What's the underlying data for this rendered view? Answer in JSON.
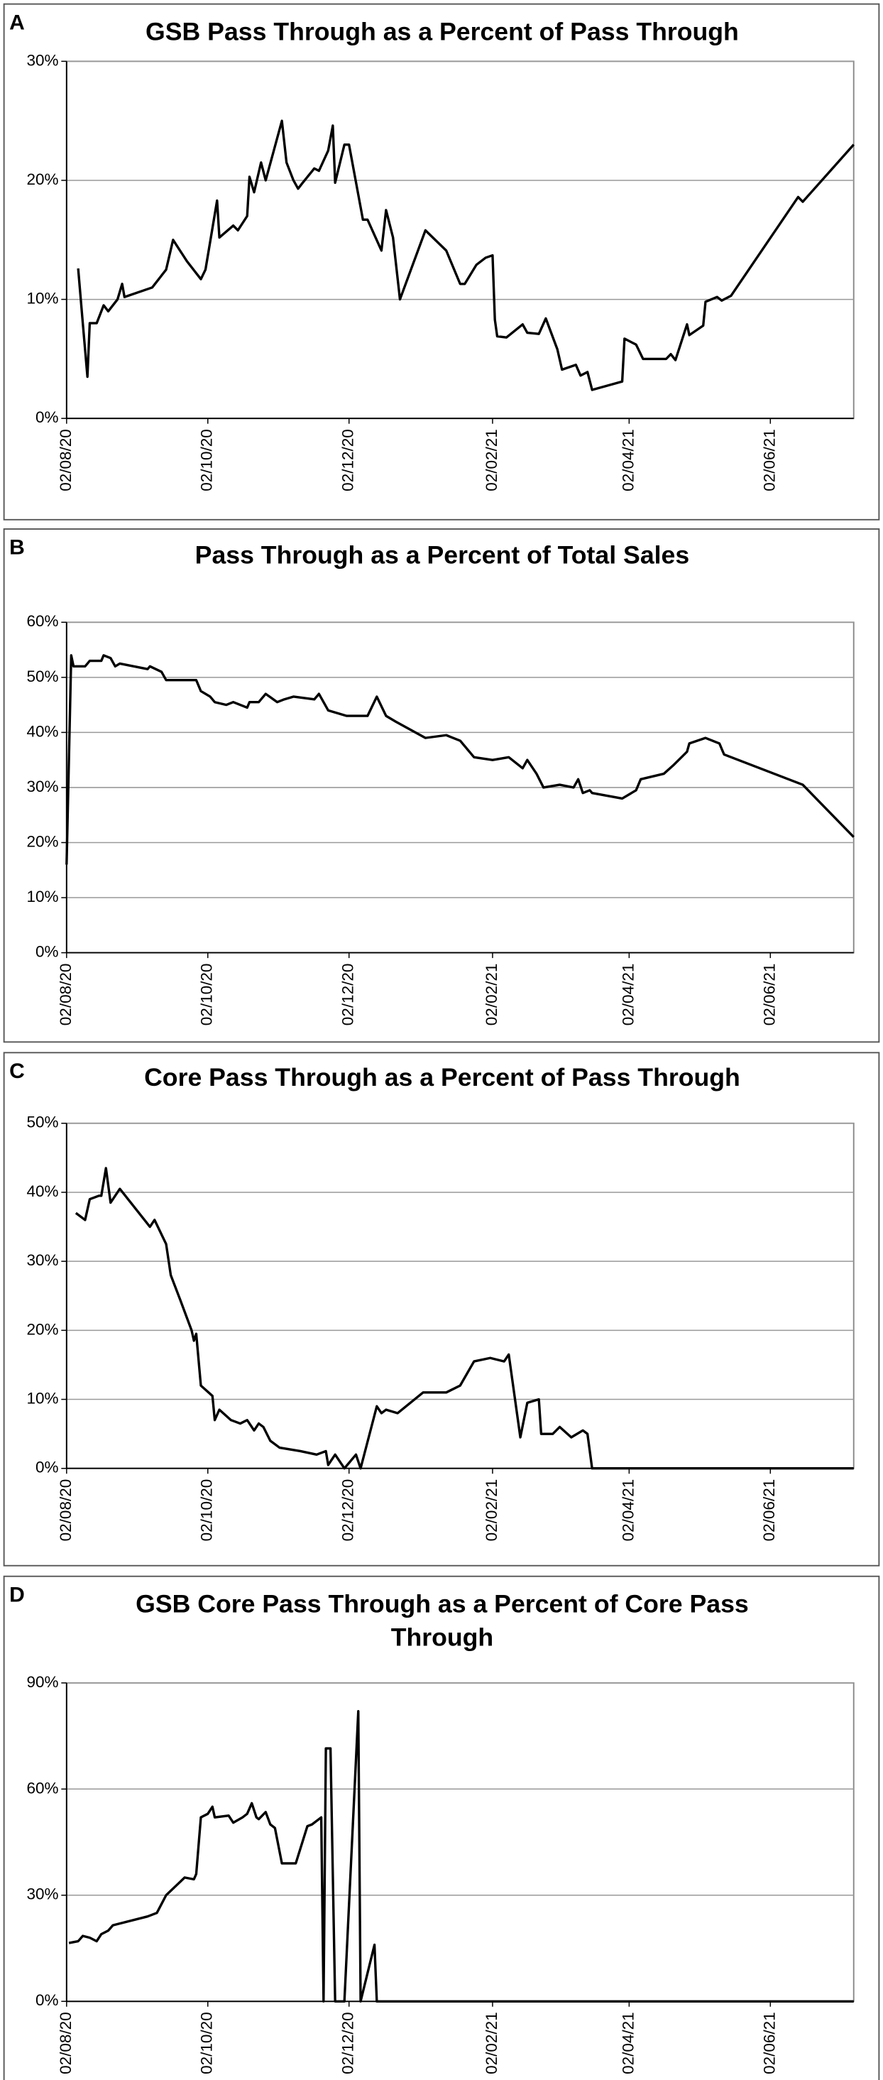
{
  "chart_data": [
    {
      "type": "line",
      "panel": "A",
      "title": "GSB Pass Through as a Percent of Pass Through",
      "xlim": [
        "2020-08-02",
        "2021-07-08"
      ],
      "xticks": [
        {
          "value": "2020-08-02",
          "label": "02/08/20"
        },
        {
          "value": "2020-10-02",
          "label": "02/10/20"
        },
        {
          "value": "2020-12-02",
          "label": "02/12/20"
        },
        {
          "value": "2021-02-02",
          "label": "02/02/21"
        },
        {
          "value": "2021-04-02",
          "label": "02/04/21"
        },
        {
          "value": "2021-06-02",
          "label": "02/06/21"
        }
      ],
      "ylim": [
        0,
        30
      ],
      "yticks": [
        {
          "value": 0,
          "label": "0%"
        },
        {
          "value": 10,
          "label": "10%"
        },
        {
          "value": 20,
          "label": "20%"
        },
        {
          "value": 30,
          "label": "30%"
        }
      ],
      "grid": true,
      "series": [
        {
          "color": "#000000",
          "x": [
            "2020-08-07",
            "2020-08-09",
            "2020-08-11",
            "2020-08-12",
            "2020-08-15",
            "2020-08-18",
            "2020-08-20",
            "2020-08-24",
            "2020-08-26",
            "2020-08-27",
            "2020-09-08",
            "2020-09-14",
            "2020-09-17",
            "2020-09-23",
            "2020-09-29",
            "2020-10-01",
            "2020-10-06",
            "2020-10-07",
            "2020-10-13",
            "2020-10-15",
            "2020-10-19",
            "2020-10-20",
            "2020-10-22",
            "2020-10-25",
            "2020-10-27",
            "2020-11-03",
            "2020-11-05",
            "2020-11-08",
            "2020-11-10",
            "2020-11-12",
            "2020-11-17",
            "2020-11-19",
            "2020-11-23",
            "2020-11-25",
            "2020-11-26",
            "2020-11-30",
            "2020-12-02",
            "2020-12-08",
            "2020-12-10",
            "2020-12-16",
            "2020-12-18",
            "2020-12-21",
            "2020-12-24",
            "2021-01-04",
            "2021-01-13",
            "2021-01-19",
            "2021-01-21",
            "2021-01-26",
            "2021-01-30",
            "2021-02-02",
            "2021-02-03",
            "2021-02-04",
            "2021-02-08",
            "2021-02-15",
            "2021-02-17",
            "2021-02-22",
            "2021-02-25",
            "2021-03-02",
            "2021-03-04",
            "2021-03-10",
            "2021-03-12",
            "2021-03-15",
            "2021-03-17",
            "2021-03-30",
            "2021-03-31",
            "2021-04-05",
            "2021-04-08",
            "2021-04-18",
            "2021-04-20",
            "2021-04-22",
            "2021-04-27",
            "2021-04-28",
            "2021-05-04",
            "2021-05-05",
            "2021-05-10",
            "2021-05-12",
            "2021-05-16",
            "2021-06-14",
            "2021-06-16",
            "2021-07-08"
          ],
          "values": [
            12.6,
            8,
            3.5,
            8,
            8,
            9.5,
            9,
            10,
            11.3,
            10.2,
            11,
            12.5,
            15,
            13.2,
            11.7,
            12.5,
            18.3,
            15.2,
            16.2,
            15.8,
            17,
            20.3,
            19,
            21.5,
            20,
            25,
            21.5,
            20,
            19.3,
            19.8,
            21,
            20.8,
            22.5,
            24.6,
            19.8,
            23,
            23,
            16.7,
            16.7,
            14.1,
            17.5,
            15.2,
            10,
            15.8,
            14.1,
            11.3,
            11.3,
            12.9,
            13.5,
            13.7,
            8.3,
            6.9,
            6.8,
            7.9,
            7.2,
            7.1,
            8.4,
            5.8,
            4.1,
            4.5,
            3.6,
            3.9,
            2.4,
            3.1,
            6.7,
            6.2,
            5,
            5,
            5.4,
            4.9,
            7.9,
            7,
            7.8,
            9.8,
            10.2,
            9.9,
            10.3,
            18.6,
            18.2,
            23
          ]
        }
      ]
    },
    {
      "type": "line",
      "panel": "B",
      "title": "Pass Through as a Percent of Total Sales",
      "xlim": [
        "2020-08-02",
        "2021-07-08"
      ],
      "xticks": [
        {
          "value": "2020-08-02",
          "label": "02/08/20"
        },
        {
          "value": "2020-10-02",
          "label": "02/10/20"
        },
        {
          "value": "2020-12-02",
          "label": "02/12/20"
        },
        {
          "value": "2021-02-02",
          "label": "02/02/21"
        },
        {
          "value": "2021-04-02",
          "label": "02/04/21"
        },
        {
          "value": "2021-06-02",
          "label": "02/06/21"
        }
      ],
      "ylim": [
        0,
        60
      ],
      "yticks": [
        {
          "value": 0,
          "label": "0%"
        },
        {
          "value": 10,
          "label": "10%"
        },
        {
          "value": 20,
          "label": "20%"
        },
        {
          "value": 30,
          "label": "30%"
        },
        {
          "value": 40,
          "label": "40%"
        },
        {
          "value": 50,
          "label": "50%"
        },
        {
          "value": 60,
          "label": "60%"
        }
      ],
      "grid": true,
      "series": [
        {
          "color": "#000000",
          "x": [
            "2020-08-02",
            "2020-08-04",
            "2020-08-05",
            "2020-08-10",
            "2020-08-12",
            "2020-08-17",
            "2020-08-18",
            "2020-08-21",
            "2020-08-23",
            "2020-08-25",
            "2020-09-06",
            "2020-09-07",
            "2020-09-12",
            "2020-09-14",
            "2020-09-27",
            "2020-09-29",
            "2020-10-03",
            "2020-10-05",
            "2020-10-10",
            "2020-10-13",
            "2020-10-19",
            "2020-10-20",
            "2020-10-24",
            "2020-10-27",
            "2020-11-01",
            "2020-11-04",
            "2020-11-08",
            "2020-11-17",
            "2020-11-19",
            "2020-11-23",
            "2020-12-01",
            "2020-12-10",
            "2020-12-14",
            "2020-12-18",
            "2020-12-22",
            "2021-01-04",
            "2021-01-13",
            "2021-01-19",
            "2021-01-25",
            "2021-02-02",
            "2021-02-09",
            "2021-02-15",
            "2021-02-17",
            "2021-02-21",
            "2021-02-24",
            "2021-03-03",
            "2021-03-09",
            "2021-03-11",
            "2021-03-13",
            "2021-03-16",
            "2021-03-17",
            "2021-03-30",
            "2021-04-05",
            "2021-04-07",
            "2021-04-17",
            "2021-04-21",
            "2021-04-27",
            "2021-04-28",
            "2021-05-05",
            "2021-05-11",
            "2021-05-13",
            "2021-06-16",
            "2021-07-08"
          ],
          "values": [
            16,
            54,
            52,
            52,
            53,
            53,
            54,
            53.5,
            52,
            52.5,
            51.5,
            52,
            51,
            49.5,
            49.5,
            47.5,
            46.5,
            45.5,
            45,
            45.5,
            44.5,
            45.5,
            45.5,
            47,
            45.5,
            46,
            46.5,
            46,
            47,
            44,
            43,
            43,
            46.5,
            43,
            42,
            39,
            39.5,
            38.5,
            35.5,
            35,
            35.5,
            33.5,
            35,
            32.5,
            30,
            30.5,
            30,
            31.5,
            29,
            29.5,
            29,
            28,
            29.5,
            31.5,
            32.5,
            34,
            36.5,
            38,
            39,
            38,
            36,
            30.5,
            21
          ]
        }
      ]
    },
    {
      "type": "line",
      "panel": "C",
      "title": "Core Pass Through as a Percent of Pass Through",
      "xlim": [
        "2020-08-02",
        "2021-07-08"
      ],
      "xticks": [
        {
          "value": "2020-08-02",
          "label": "02/08/20"
        },
        {
          "value": "2020-10-02",
          "label": "02/10/20"
        },
        {
          "value": "2020-12-02",
          "label": "02/12/20"
        },
        {
          "value": "2021-02-02",
          "label": "02/02/21"
        },
        {
          "value": "2021-04-02",
          "label": "02/04/21"
        },
        {
          "value": "2021-06-02",
          "label": "02/06/21"
        }
      ],
      "ylim": [
        0,
        50
      ],
      "yticks": [
        {
          "value": 0,
          "label": "0%"
        },
        {
          "value": 10,
          "label": "10%"
        },
        {
          "value": 20,
          "label": "20%"
        },
        {
          "value": 30,
          "label": "30%"
        },
        {
          "value": 40,
          "label": "40%"
        },
        {
          "value": 50,
          "label": "50%"
        }
      ],
      "grid": true,
      "series": [
        {
          "color": "#000000",
          "x": [
            "2020-08-06",
            "2020-08-10",
            "2020-08-12",
            "2020-08-16",
            "2020-08-17",
            "2020-08-19",
            "2020-08-21",
            "2020-08-23",
            "2020-08-25",
            "2020-09-07",
            "2020-09-09",
            "2020-09-14",
            "2020-09-16",
            "2020-09-20",
            "2020-09-25",
            "2020-09-26",
            "2020-09-27",
            "2020-09-29",
            "2020-10-04",
            "2020-10-05",
            "2020-10-07",
            "2020-10-12",
            "2020-10-16",
            "2020-10-19",
            "2020-10-22",
            "2020-10-24",
            "2020-10-26",
            "2020-10-29",
            "2020-11-02",
            "2020-11-11",
            "2020-11-18",
            "2020-11-22",
            "2020-11-23",
            "2020-11-26",
            "2020-11-30",
            "2020-12-05",
            "2020-12-07",
            "2020-12-14",
            "2020-12-16",
            "2020-12-18",
            "2020-12-23",
            "2021-01-03",
            "2021-01-13",
            "2021-01-19",
            "2021-01-25",
            "2021-02-01",
            "2021-02-07",
            "2021-02-09",
            "2021-02-14",
            "2021-02-17",
            "2021-02-22",
            "2021-02-23",
            "2021-02-28",
            "2021-03-03",
            "2021-03-08",
            "2021-03-13",
            "2021-03-15",
            "2021-03-17",
            "2021-07-08"
          ],
          "values": [
            37,
            36,
            39,
            39.5,
            39.5,
            43.5,
            38.5,
            39.5,
            40.5,
            35,
            36,
            32.5,
            28,
            24.5,
            20,
            18.5,
            19.5,
            12,
            10.5,
            7,
            8.5,
            7,
            6.5,
            7,
            5.5,
            6.5,
            6,
            4,
            3,
            2.5,
            2,
            2.5,
            0.5,
            2,
            0,
            2,
            0,
            9,
            8,
            8.5,
            8,
            11,
            11,
            12,
            15.5,
            16,
            15.5,
            16.5,
            4.5,
            9.5,
            10,
            5,
            5,
            6,
            4.5,
            5.5,
            5,
            0,
            0
          ]
        }
      ]
    },
    {
      "type": "line",
      "panel": "D",
      "title": "GSB Core Pass Through as a Percent of Core Pass Through",
      "xlim": [
        "2020-08-02",
        "2021-07-08"
      ],
      "xticks": [
        {
          "value": "2020-08-02",
          "label": "02/08/20"
        },
        {
          "value": "2020-10-02",
          "label": "02/10/20"
        },
        {
          "value": "2020-12-02",
          "label": "02/12/20"
        },
        {
          "value": "2021-02-02",
          "label": "02/02/21"
        },
        {
          "value": "2021-04-02",
          "label": "02/04/21"
        },
        {
          "value": "2021-06-02",
          "label": "02/06/21"
        }
      ],
      "ylim": [
        0,
        90
      ],
      "yticks": [
        {
          "value": 0,
          "label": "0%"
        },
        {
          "value": 30,
          "label": "30%"
        },
        {
          "value": 60,
          "label": "60%"
        },
        {
          "value": 90,
          "label": "90%"
        }
      ],
      "grid": true,
      "series": [
        {
          "color": "#000000",
          "x": [
            "2020-08-03",
            "2020-08-07",
            "2020-08-09",
            "2020-08-12",
            "2020-08-15",
            "2020-08-17",
            "2020-08-20",
            "2020-08-22",
            "2020-09-06",
            "2020-09-10",
            "2020-09-14",
            "2020-09-22",
            "2020-09-26",
            "2020-09-27",
            "2020-09-29",
            "2020-10-02",
            "2020-10-04",
            "2020-10-05",
            "2020-10-11",
            "2020-10-13",
            "2020-10-17",
            "2020-10-19",
            "2020-10-21",
            "2020-10-23",
            "2020-10-24",
            "2020-10-27",
            "2020-10-29",
            "2020-10-31",
            "2020-11-03",
            "2020-11-09",
            "2020-11-14",
            "2020-11-16",
            "2020-11-20",
            "2020-11-21",
            "2020-11-22",
            "2020-11-24",
            "2020-11-26",
            "2020-11-30",
            "2020-12-06",
            "2020-12-07",
            "2020-12-13",
            "2020-12-14",
            "2021-07-08"
          ],
          "values": [
            16.5,
            17,
            18.5,
            18,
            17,
            19,
            20,
            21.5,
            24,
            25,
            30,
            35,
            34.5,
            36,
            52,
            53,
            55,
            52,
            52.5,
            50.5,
            52,
            53,
            56,
            52,
            51.5,
            53.5,
            50,
            49,
            39,
            39,
            49.5,
            50,
            52,
            0,
            71.5,
            71.5,
            0,
            0,
            82,
            0,
            16,
            0,
            0
          ]
        }
      ]
    }
  ]
}
